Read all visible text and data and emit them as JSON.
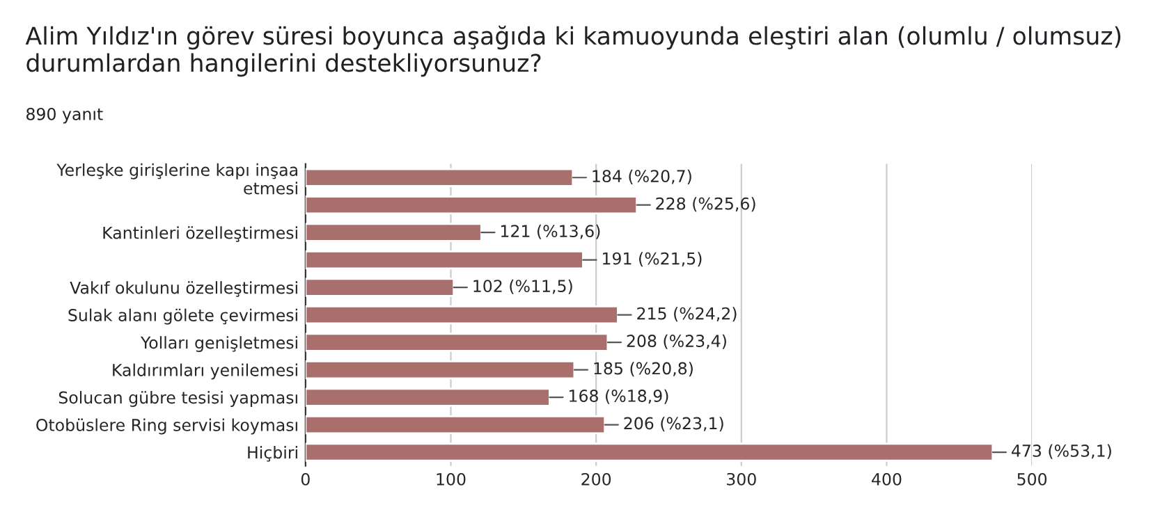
{
  "chart_data": {
    "type": "bar",
    "orientation": "horizontal",
    "title": "Alim Yıldız'ın görev süresi boyunca aşağıda ki kamuoyunda eleştiri alan (olumlu / olumsuz) durumlardan hangilerini destekliyorsunuz?",
    "subtitle": "890 yanıt",
    "categories": [
      "Yerleşke girişlerine kapı inşaa etmesi",
      null,
      "Kantinleri özelleştirmesi",
      null,
      "Vakıf okulunu özelleştirmesi",
      "Sulak alanı gölete çevirmesi",
      "Yolları genişletmesi",
      "Kaldırımları yenilemesi",
      "Solucan gübre tesisi yapması",
      "Otobüslere Ring servisi koyması",
      "Hiçbiri"
    ],
    "values": [
      184,
      228,
      121,
      191,
      102,
      215,
      208,
      185,
      168,
      206,
      473
    ],
    "value_labels": [
      "184 (%20,7)",
      "228 (%25,6)",
      "121 (%13,6)",
      "191 (%21,5)",
      "102 (%11,5)",
      "215 (%24,2)",
      "208 (%23,4)",
      "185 (%20,8)",
      "168 (%18,9)",
      "206 (%23,1)",
      "473 (%53,1)"
    ],
    "color": "#a86f6d",
    "xlim": [
      0,
      500
    ],
    "xticks": [
      0,
      100,
      200,
      300,
      400,
      500
    ],
    "grid": "x",
    "legend": false
  }
}
